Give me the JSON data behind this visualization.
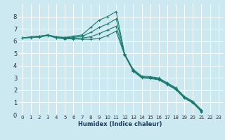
{
  "xlabel": "Humidex (Indice chaleur)",
  "xlim": [
    -0.5,
    23.5
  ],
  "ylim": [
    0,
    9
  ],
  "xticks": [
    0,
    1,
    2,
    3,
    4,
    5,
    6,
    7,
    8,
    9,
    10,
    11,
    12,
    13,
    14,
    15,
    16,
    17,
    18,
    19,
    20,
    21,
    22,
    23
  ],
  "yticks": [
    0,
    1,
    2,
    3,
    4,
    5,
    6,
    7,
    8
  ],
  "bg_color": "#cce8f0",
  "grid_color": "#ffffff",
  "line_color": "#1a7a6e",
  "lines": [
    [
      6.25,
      6.35,
      6.4,
      6.5,
      6.35,
      6.3,
      6.4,
      6.5,
      7.1,
      7.7,
      8.0,
      8.4,
      4.95,
      3.7,
      3.15,
      3.1,
      3.0,
      2.6,
      2.2,
      1.5,
      1.1,
      0.4,
      null,
      null
    ],
    [
      6.25,
      6.32,
      6.38,
      6.5,
      6.32,
      6.28,
      6.32,
      6.38,
      6.7,
      7.1,
      7.4,
      7.8,
      4.95,
      3.65,
      3.1,
      3.05,
      2.95,
      2.55,
      2.15,
      1.45,
      1.05,
      0.35,
      null,
      null
    ],
    [
      6.25,
      6.3,
      6.35,
      6.48,
      6.28,
      6.22,
      6.25,
      6.25,
      6.35,
      6.6,
      6.9,
      7.2,
      4.9,
      3.6,
      3.05,
      3.0,
      2.9,
      2.5,
      2.1,
      1.4,
      1.0,
      0.3,
      null,
      null
    ],
    [
      6.25,
      6.28,
      6.32,
      6.45,
      6.25,
      6.18,
      6.18,
      6.15,
      6.15,
      6.2,
      6.45,
      6.8,
      4.85,
      3.55,
      3.0,
      2.95,
      2.85,
      2.45,
      2.05,
      1.35,
      0.95,
      0.25,
      null,
      null
    ]
  ]
}
